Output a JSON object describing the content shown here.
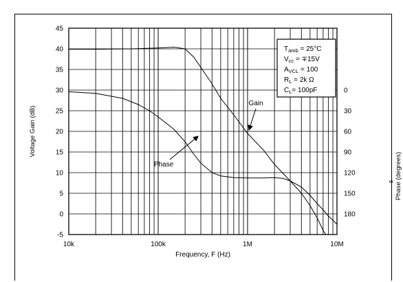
{
  "chart_data": {
    "type": "line",
    "xlabel": "Frequency, F (Hz)",
    "ylabel": "Voltage Gain (dB)",
    "y2label_main": "Phase (degrees)",
    "y2label_extra": "s",
    "xscale": "log",
    "xlim": [
      10000,
      10000000
    ],
    "ylim": [
      -5,
      45
    ],
    "x_ticks": [
      10000,
      100000,
      1000000,
      10000000
    ],
    "x_tick_labels": [
      "10k",
      "100k",
      "1M",
      "10M"
    ],
    "y_ticks": [
      -5,
      0,
      5,
      10,
      15,
      20,
      25,
      30,
      35,
      40,
      45
    ],
    "y_tick_labels": [
      "-5",
      "0",
      "5",
      "10",
      "15",
      "20",
      "25",
      "30",
      "35",
      "40",
      "45"
    ],
    "phase_ticks": [
      {
        "label": "0",
        "at_gain": 30
      },
      {
        "label": "30",
        "at_gain": 25
      },
      {
        "label": "60",
        "at_gain": 20
      },
      {
        "label": "90",
        "at_gain": 15
      },
      {
        "label": "120",
        "at_gain": 10
      },
      {
        "label": "150",
        "at_gain": 5
      },
      {
        "label": "180",
        "at_gain": 0
      }
    ],
    "grid": true,
    "series": [
      {
        "name": "Gain",
        "axis": "gain_dB",
        "points": [
          [
            10000,
            39.9
          ],
          [
            20000,
            39.9
          ],
          [
            50000,
            40.0
          ],
          [
            100000,
            40.2
          ],
          [
            150000,
            40.4
          ],
          [
            200000,
            40.0
          ],
          [
            250000,
            38.0
          ],
          [
            300000,
            35.5
          ],
          [
            400000,
            31.5
          ],
          [
            500000,
            28.0
          ],
          [
            700000,
            24.0
          ],
          [
            1000000,
            19.5
          ],
          [
            1500000,
            15.5
          ],
          [
            2000000,
            12.0
          ],
          [
            3000000,
            8.0
          ],
          [
            4000000,
            5.0
          ],
          [
            5000000,
            2.0
          ],
          [
            6000000,
            -1.0
          ],
          [
            7000000,
            -4.0
          ],
          [
            7500000,
            -5.0
          ]
        ]
      },
      {
        "name": "Phase",
        "axis": "phase_plotted_on_gain_scale",
        "points": [
          [
            10000,
            29.6
          ],
          [
            20000,
            29.2
          ],
          [
            40000,
            28.0
          ],
          [
            60000,
            26.5
          ],
          [
            80000,
            25.0
          ],
          [
            100000,
            23.5
          ],
          [
            150000,
            20.5
          ],
          [
            200000,
            17.5
          ],
          [
            250000,
            14.5
          ],
          [
            300000,
            12.3
          ],
          [
            400000,
            10.0
          ],
          [
            500000,
            9.2
          ],
          [
            700000,
            8.8
          ],
          [
            1000000,
            8.7
          ],
          [
            1500000,
            8.7
          ],
          [
            2000000,
            8.8
          ],
          [
            2500000,
            8.6
          ],
          [
            3000000,
            8.0
          ],
          [
            4000000,
            6.5
          ],
          [
            5000000,
            4.5
          ],
          [
            6000000,
            2.5
          ],
          [
            7000000,
            1.0
          ],
          [
            8000000,
            -0.5
          ],
          [
            10000000,
            -2.5
          ]
        ]
      }
    ],
    "annotations": [
      {
        "text": "Gain",
        "arrow_to": [
          1000000,
          20
        ]
      },
      {
        "text": "Phase",
        "arrow_to": [
          270000,
          18.5
        ]
      }
    ],
    "legend_box": {
      "lines": [
        {
          "main": "T",
          "sub": "amb",
          "rest": " = 25°C"
        },
        {
          "main": "V",
          "sub": "cc",
          "rest": " = ∓15V"
        },
        {
          "main": "A",
          "sub": "VCL",
          "rest": " = 100"
        },
        {
          "main": "R",
          "sub": "L",
          "rest": " = 2k Ω"
        },
        {
          "main": "C",
          "sub": "L",
          "rest": "= 100pF"
        }
      ],
      "placement": "top-right"
    }
  }
}
